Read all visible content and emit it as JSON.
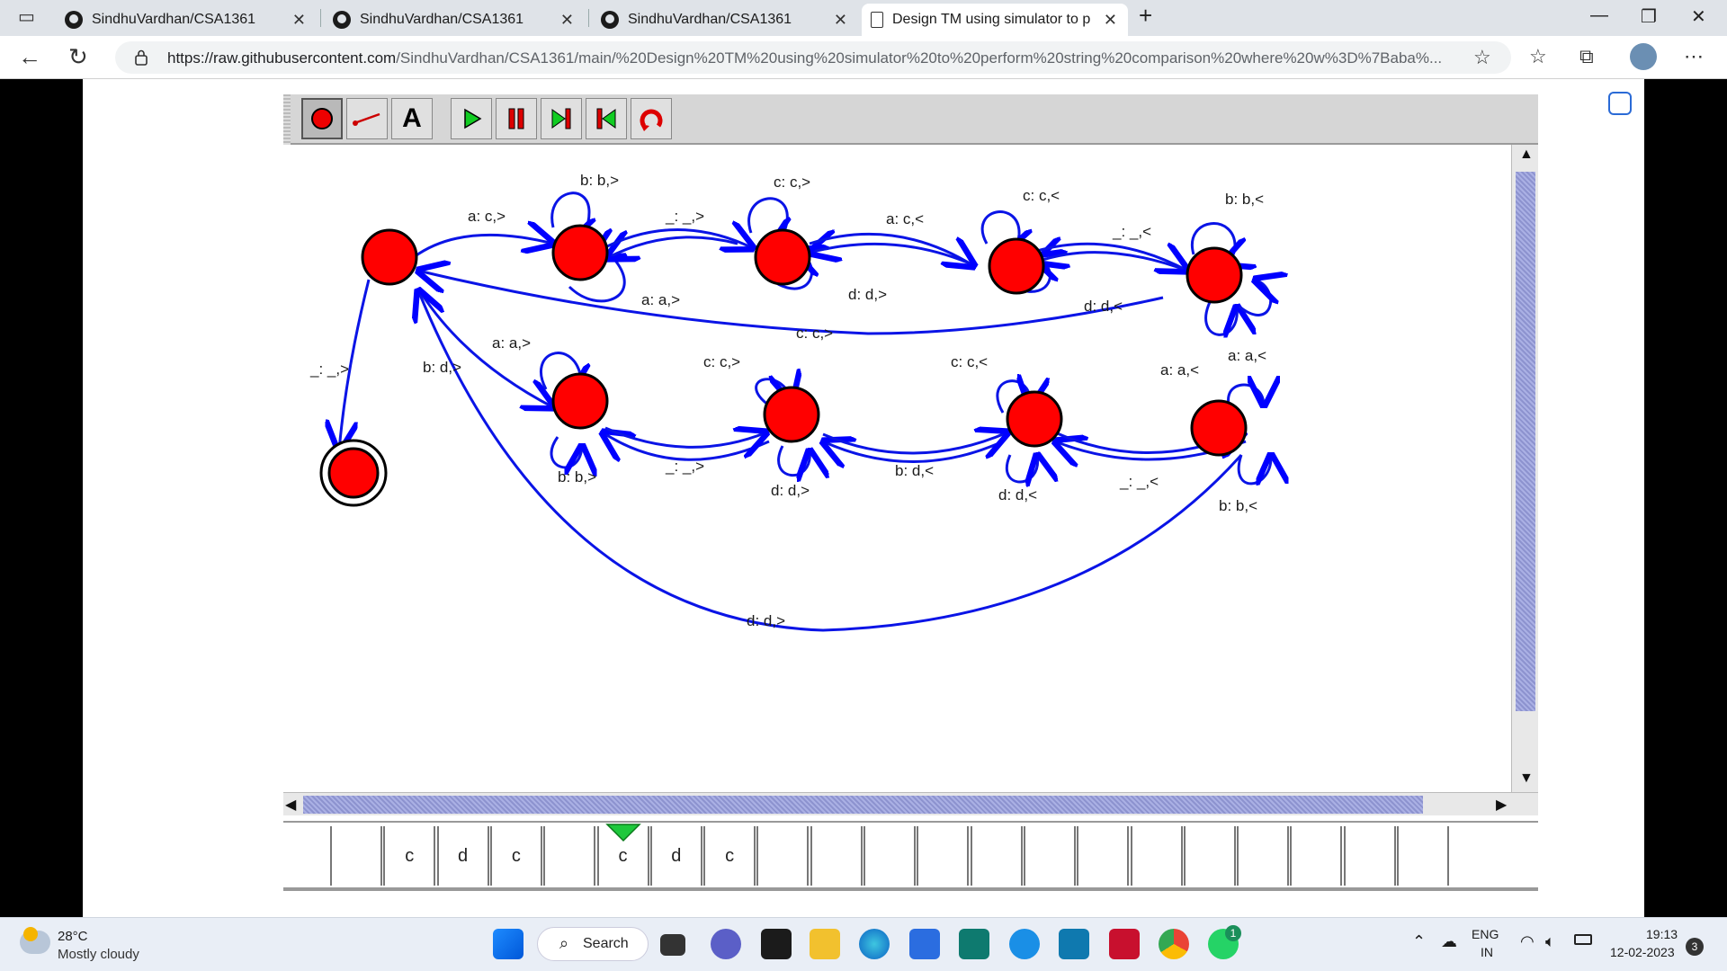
{
  "browser": {
    "tabs": [
      {
        "title": "SindhuVardhan/CSA1361",
        "active": false
      },
      {
        "title": "SindhuVardhan/CSA1361",
        "active": false
      },
      {
        "title": "SindhuVardhan/CSA1361",
        "active": false
      },
      {
        "title": "Design TM using simulator to pe",
        "active": true
      }
    ],
    "url_host": "https://raw.githubusercontent.com",
    "url_path": "/SindhuVardhan/CSA1361/main/%20Design%20TM%20using%20simulator%20to%20perform%20string%20comparison%20where%20w%3D%7Baba%..."
  },
  "jflap": {
    "tools": [
      "state-tool",
      "transition-tool",
      "delete-tool",
      "run-button",
      "pause-button",
      "step-button",
      "reset-button",
      "rewind-button"
    ],
    "transitions": {
      "t1": "a: c,>",
      "t2": "b: b,>",
      "t3": "_: _,>",
      "t4": "c: c,>",
      "t5": "a: c,<",
      "t6": "c: c,<",
      "t7": "_: _,<",
      "t8": "b: b,<",
      "t9": "a: a,>",
      "t10": "d: d,>",
      "t11": "d: d,<",
      "t12": "c: c,>",
      "t13": "a: a,<",
      "t14": "_: _,>",
      "t15": "b: d,>",
      "t16": "a: a,>",
      "t17": "c: c,>",
      "t18": "c: c,<",
      "t19": "a: a,<",
      "t20": "b: b,>",
      "t21": "_: _,>",
      "t22": "d: d,>",
      "t23": "b: d,<",
      "t24": "d: d,<",
      "t25": "_: _,<",
      "t26": "b: b,<",
      "t27": "d: d,>"
    },
    "tape": [
      "",
      "c",
      "d",
      "c",
      "",
      "c",
      "d",
      "c",
      "",
      "",
      "",
      "",
      "",
      "",
      "",
      "",
      "",
      "",
      "",
      "",
      ""
    ],
    "head_index": 5
  },
  "taskbar": {
    "weather_temp": "28°C",
    "weather_desc": "Mostly cloudy",
    "search_label": "Search",
    "lang_top": "ENG",
    "lang_bottom": "IN",
    "time": "19:13",
    "date": "12-02-2023",
    "notif_count": "3",
    "whatsapp_badge": "1"
  }
}
